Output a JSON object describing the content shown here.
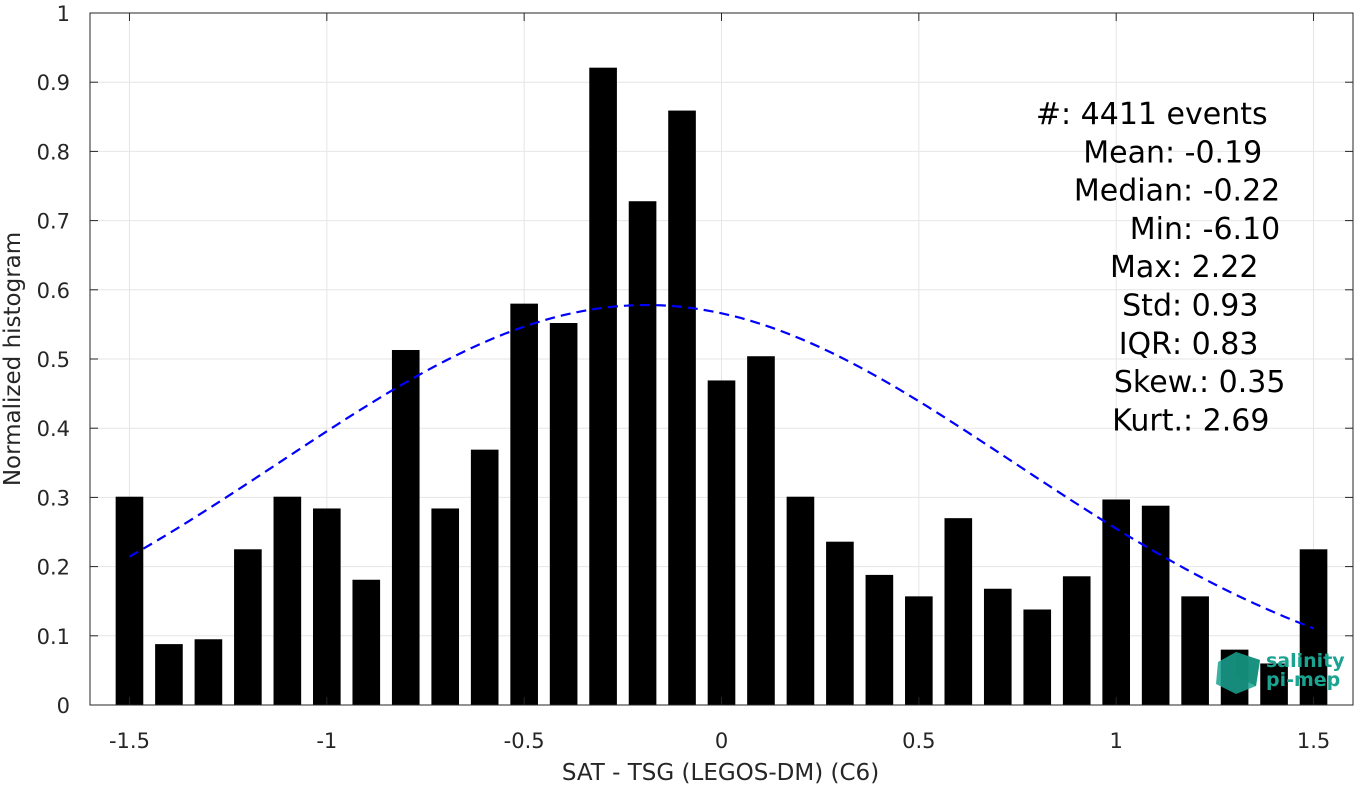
{
  "chart_data": {
    "type": "bar",
    "xlabel": "SAT - TSG (LEGOS-DM) (C6)",
    "ylabel": "Normalized histogram",
    "xlim": [
      -1.6,
      1.6
    ],
    "ylim": [
      0,
      1
    ],
    "grid": true,
    "x": [
      -1.5,
      -1.4,
      -1.3,
      -1.2,
      -1.1,
      -1.0,
      -0.9,
      -0.8,
      -0.7,
      -0.6,
      -0.5,
      -0.4,
      -0.3,
      -0.2,
      -0.1,
      0.0,
      0.1,
      0.2,
      0.3,
      0.4,
      0.5,
      0.6,
      0.7,
      0.8,
      0.9,
      1.0,
      1.1,
      1.2,
      1.3,
      1.4,
      1.5
    ],
    "values": [
      0.301,
      0.088,
      0.095,
      0.225,
      0.301,
      0.284,
      0.181,
      0.513,
      0.284,
      0.369,
      0.58,
      0.552,
      0.921,
      0.728,
      0.859,
      0.469,
      0.504,
      0.301,
      0.236,
      0.188,
      0.157,
      0.27,
      0.168,
      0.138,
      0.186,
      0.297,
      0.288,
      0.157,
      0.08,
      0.06,
      0.225
    ],
    "bar_color": "#000000",
    "xticks": [
      -1.5,
      -1,
      -0.5,
      0,
      0.5,
      1,
      1.5
    ],
    "xtick_labels": [
      "-1.5",
      "-1",
      "-0.5",
      "0",
      "0.5",
      "1",
      "1.5"
    ],
    "yticks": [
      0,
      0.1,
      0.2,
      0.3,
      0.4,
      0.5,
      0.6,
      0.7,
      0.8,
      0.9,
      1
    ],
    "ytick_labels": [
      "0",
      "0.1",
      "0.2",
      "0.3",
      "0.4",
      "0.5",
      "0.6",
      "0.7",
      "0.8",
      "0.9",
      "1"
    ],
    "fit_curve": {
      "style": "dashed",
      "color": "#0000ff",
      "mean": -0.19,
      "std": 0.93,
      "peak": 0.578,
      "x_range": [
        -1.5,
        1.5
      ]
    },
    "stats": [
      {
        "label": "#  ",
        "value": ": 4411 events"
      },
      {
        "label": "Mean ",
        "value": ": -0.19"
      },
      {
        "label": "Median ",
        "value": ": -0.22"
      },
      {
        "label": "Min ",
        "value": ": -6.10"
      },
      {
        "label": "Max ",
        "value": ": 2.22"
      },
      {
        "label": "Std ",
        "value": ": 0.93"
      },
      {
        "label": "IQR ",
        "value": ": 0.83"
      },
      {
        "label": "Skew. ",
        "value": ": 0.35"
      },
      {
        "label": "Kurt. ",
        "value": ": 2.69"
      }
    ]
  },
  "logo": {
    "line1": "salinity",
    "line2": "pi-mep",
    "color": "#1aa391"
  }
}
